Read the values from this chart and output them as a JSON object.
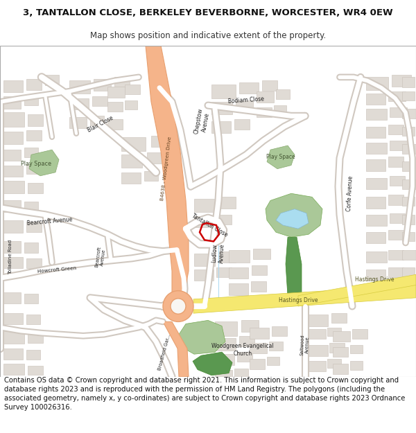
{
  "title_line1": "3, TANTALLON CLOSE, BERKELEY BEVERBORNE, WORCESTER, WR4 0EW",
  "title_line2": "Map shows position and indicative extent of the property.",
  "footer": "Contains OS data © Crown copyright and database right 2021. This information is subject to Crown copyright and database rights 2023 and is reproduced with the permission of HM Land Registry. The polygons (including the associated geometry, namely x, y co-ordinates) are subject to Crown copyright and database rights 2023 Ordnance Survey 100026316.",
  "title_fontsize": 9.5,
  "subtitle_fontsize": 8.5,
  "footer_fontsize": 7.2,
  "bg_color": "#ffffff",
  "map_bg": "#f8f6f3",
  "road_color": "#ffffff",
  "major_road_color": "#f5b48a",
  "building_color": "#e0dbd5",
  "building_edge": "#c8c0b8",
  "green_color": "#aac898",
  "green_color2": "#7ab870",
  "green_dark": "#5a9850",
  "water_color": "#aaddf0",
  "property_color": "#cc0000",
  "hastings_color": "#f5e870",
  "hastings_edge": "#d8cc40"
}
